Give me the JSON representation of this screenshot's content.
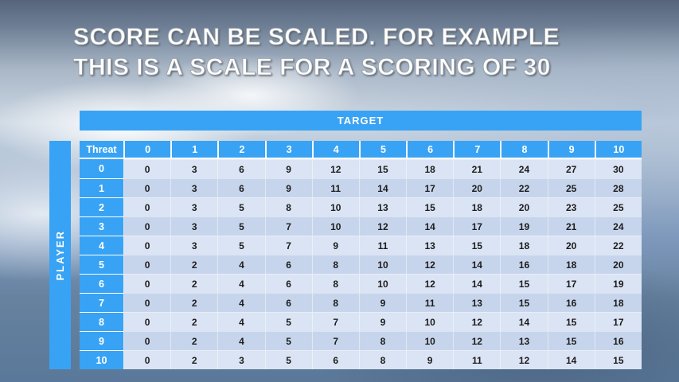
{
  "slide": {
    "title_line1": "SCORE CAN BE SCALED. FOR EXAMPLE",
    "title_line2": "THIS IS A SCALE FOR A SCORING OF 30"
  },
  "table": {
    "target_label": "TARGET",
    "player_label": "PLAYER",
    "corner_label": "Threat",
    "column_headers": [
      "0",
      "1",
      "2",
      "3",
      "4",
      "5",
      "6",
      "7",
      "8",
      "9",
      "10"
    ],
    "rows": [
      {
        "threat": "0",
        "values": [
          0,
          3,
          6,
          9,
          12,
          15,
          18,
          21,
          24,
          27,
          30
        ]
      },
      {
        "threat": "1",
        "values": [
          0,
          3,
          6,
          9,
          11,
          14,
          17,
          20,
          22,
          25,
          28
        ]
      },
      {
        "threat": "2",
        "values": [
          0,
          3,
          5,
          8,
          10,
          13,
          15,
          18,
          20,
          23,
          25
        ]
      },
      {
        "threat": "3",
        "values": [
          0,
          3,
          5,
          7,
          10,
          12,
          14,
          17,
          19,
          21,
          24
        ]
      },
      {
        "threat": "4",
        "values": [
          0,
          3,
          5,
          7,
          9,
          11,
          13,
          15,
          18,
          20,
          22
        ]
      },
      {
        "threat": "5",
        "values": [
          0,
          2,
          4,
          6,
          8,
          10,
          12,
          14,
          16,
          18,
          20
        ]
      },
      {
        "threat": "6",
        "values": [
          0,
          2,
          4,
          6,
          8,
          10,
          12,
          14,
          15,
          17,
          19
        ]
      },
      {
        "threat": "7",
        "values": [
          0,
          2,
          4,
          6,
          8,
          9,
          11,
          13,
          15,
          16,
          18
        ]
      },
      {
        "threat": "8",
        "values": [
          0,
          2,
          4,
          5,
          7,
          9,
          10,
          12,
          14,
          15,
          17
        ]
      },
      {
        "threat": "9",
        "values": [
          0,
          2,
          4,
          5,
          7,
          8,
          10,
          12,
          13,
          15,
          16
        ]
      },
      {
        "threat": "10",
        "values": [
          0,
          2,
          3,
          5,
          6,
          8,
          9,
          11,
          12,
          14,
          15
        ]
      }
    ]
  },
  "colors": {
    "accent_blue": "#38a3f4",
    "row_light": "#dbe4f4",
    "row_dark": "#c7d5ec",
    "cell_text": "#1c1c1c"
  },
  "chart_data": {
    "type": "table",
    "title": "SCORE CAN BE SCALED. FOR EXAMPLE THIS IS A SCALE FOR A SCORING OF 30",
    "column_axis_label": "TARGET",
    "row_axis_label": "PLAYER",
    "corner_label": "Threat",
    "columns": [
      0,
      1,
      2,
      3,
      4,
      5,
      6,
      7,
      8,
      9,
      10
    ],
    "row_labels": [
      0,
      1,
      2,
      3,
      4,
      5,
      6,
      7,
      8,
      9,
      10
    ],
    "values": [
      [
        0,
        3,
        6,
        9,
        12,
        15,
        18,
        21,
        24,
        27,
        30
      ],
      [
        0,
        3,
        6,
        9,
        11,
        14,
        17,
        20,
        22,
        25,
        28
      ],
      [
        0,
        3,
        5,
        8,
        10,
        13,
        15,
        18,
        20,
        23,
        25
      ],
      [
        0,
        3,
        5,
        7,
        10,
        12,
        14,
        17,
        19,
        21,
        24
      ],
      [
        0,
        3,
        5,
        7,
        9,
        11,
        13,
        15,
        18,
        20,
        22
      ],
      [
        0,
        2,
        4,
        6,
        8,
        10,
        12,
        14,
        16,
        18,
        20
      ],
      [
        0,
        2,
        4,
        6,
        8,
        10,
        12,
        14,
        15,
        17,
        19
      ],
      [
        0,
        2,
        4,
        6,
        8,
        9,
        11,
        13,
        15,
        16,
        18
      ],
      [
        0,
        2,
        4,
        5,
        7,
        9,
        10,
        12,
        14,
        15,
        17
      ],
      [
        0,
        2,
        4,
        5,
        7,
        8,
        10,
        12,
        13,
        15,
        16
      ],
      [
        0,
        2,
        3,
        5,
        6,
        8,
        9,
        11,
        12,
        14,
        15
      ]
    ]
  }
}
